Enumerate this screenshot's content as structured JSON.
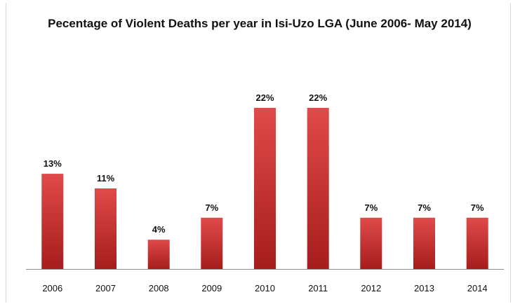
{
  "chart_data": {
    "type": "bar",
    "title": "Pecentage of Violent Deaths per year in Isi-Uzo LGA (June 2006- May 2014)",
    "categories": [
      "2006",
      "2007",
      "2008",
      "2009",
      "2010",
      "2011",
      "2012",
      "2013",
      "2014"
    ],
    "values": [
      13,
      11,
      4,
      7,
      22,
      22,
      7,
      7,
      7
    ],
    "data_labels": [
      "13%",
      "11%",
      "4%",
      "7%",
      "22%",
      "22%",
      "7%",
      "7%",
      "7%"
    ],
    "xlabel": "",
    "ylabel": "",
    "ylim": [
      0,
      22
    ],
    "grid": false,
    "legend": "none",
    "colors": {
      "bar_light": "#e04a4a",
      "bar_dark": "#a61d1d",
      "axis": "#8c8c8c"
    }
  }
}
